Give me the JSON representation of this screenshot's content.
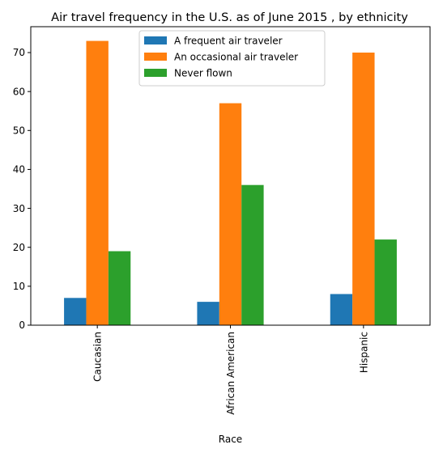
{
  "chart_data": {
    "type": "bar",
    "title": "Air travel frequency in the U.S. as of June 2015 , by ethnicity",
    "xlabel": "Race",
    "ylabel": "",
    "categories": [
      "Caucasian",
      "African American",
      "Hispanic"
    ],
    "series": [
      {
        "name": "A frequent air traveler",
        "values": [
          7,
          6,
          8
        ],
        "color": "#1f77b4"
      },
      {
        "name": "An occasional air traveler",
        "values": [
          73,
          57,
          70
        ],
        "color": "#ff7f0e"
      },
      {
        "name": "Never flown",
        "values": [
          19,
          36,
          22
        ],
        "color": "#2ca02c"
      }
    ],
    "ylim": [
      0,
      76.65
    ],
    "yticks": [
      0,
      10,
      20,
      30,
      40,
      50,
      60,
      70
    ],
    "grid": false,
    "legend": "top-center"
  }
}
